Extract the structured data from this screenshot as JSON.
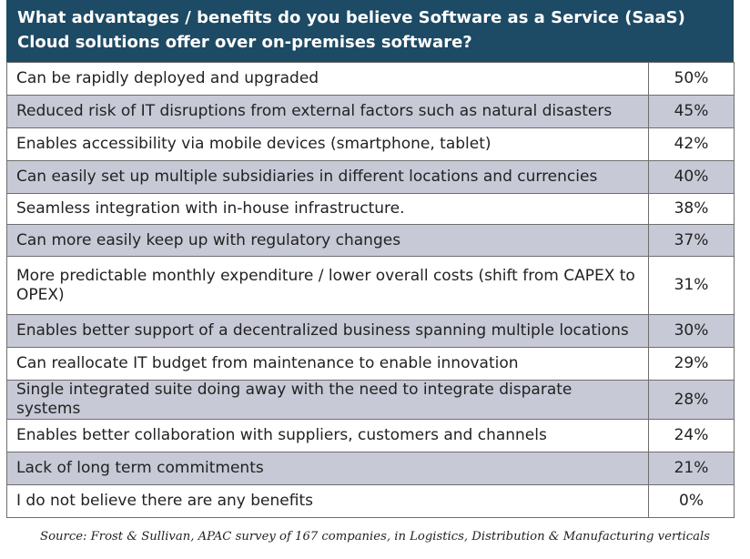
{
  "title": "What advantages / benefits do you believe Software as a Service (SaaS) Cloud solutions offer over on-premises software?",
  "colors": {
    "header_bg": "#1d4a64",
    "shaded_row": "#c7c9d6",
    "border": "#6e6e6e"
  },
  "chart_data": {
    "type": "table",
    "title": "What advantages / benefits do you believe Software as a Service (SaaS) Cloud solutions offer over on-premises software?",
    "rows": [
      {
        "label": "Can be rapidly deployed and upgraded",
        "value": "50%"
      },
      {
        "label": "Reduced risk of IT disruptions from external factors such as natural disasters",
        "value": "45%"
      },
      {
        "label": "Enables accessibility via mobile devices (smartphone, tablet)",
        "value": "42%"
      },
      {
        "label": "Can easily set up multiple subsidiaries in different locations and currencies",
        "value": "40%"
      },
      {
        "label": "Seamless integration with in-house infrastructure.",
        "value": "38%"
      },
      {
        "label": "Can more easily keep up with regulatory changes",
        "value": "37%"
      },
      {
        "label": "More predictable monthly expenditure / lower overall costs (shift from CAPEX to OPEX)",
        "value": "31%"
      },
      {
        "label": "Enables better support of a decentralized business spanning multiple locations",
        "value": "30%"
      },
      {
        "label": "Can reallocate IT budget from maintenance to enable innovation",
        "value": "29%"
      },
      {
        "label": "Single integrated suite doing away with the need to integrate disparate systems",
        "value": "28%"
      },
      {
        "label": "Enables better collaboration with suppliers, customers and channels",
        "value": "24%"
      },
      {
        "label": "Lack of long term commitments",
        "value": "21%"
      },
      {
        "label": "I do not believe there are any benefits",
        "value": "0%"
      }
    ]
  },
  "source": "Source: Frost & Sullivan, APAC survey of 167 companies, in Logistics, Distribution & Manufacturing verticals"
}
